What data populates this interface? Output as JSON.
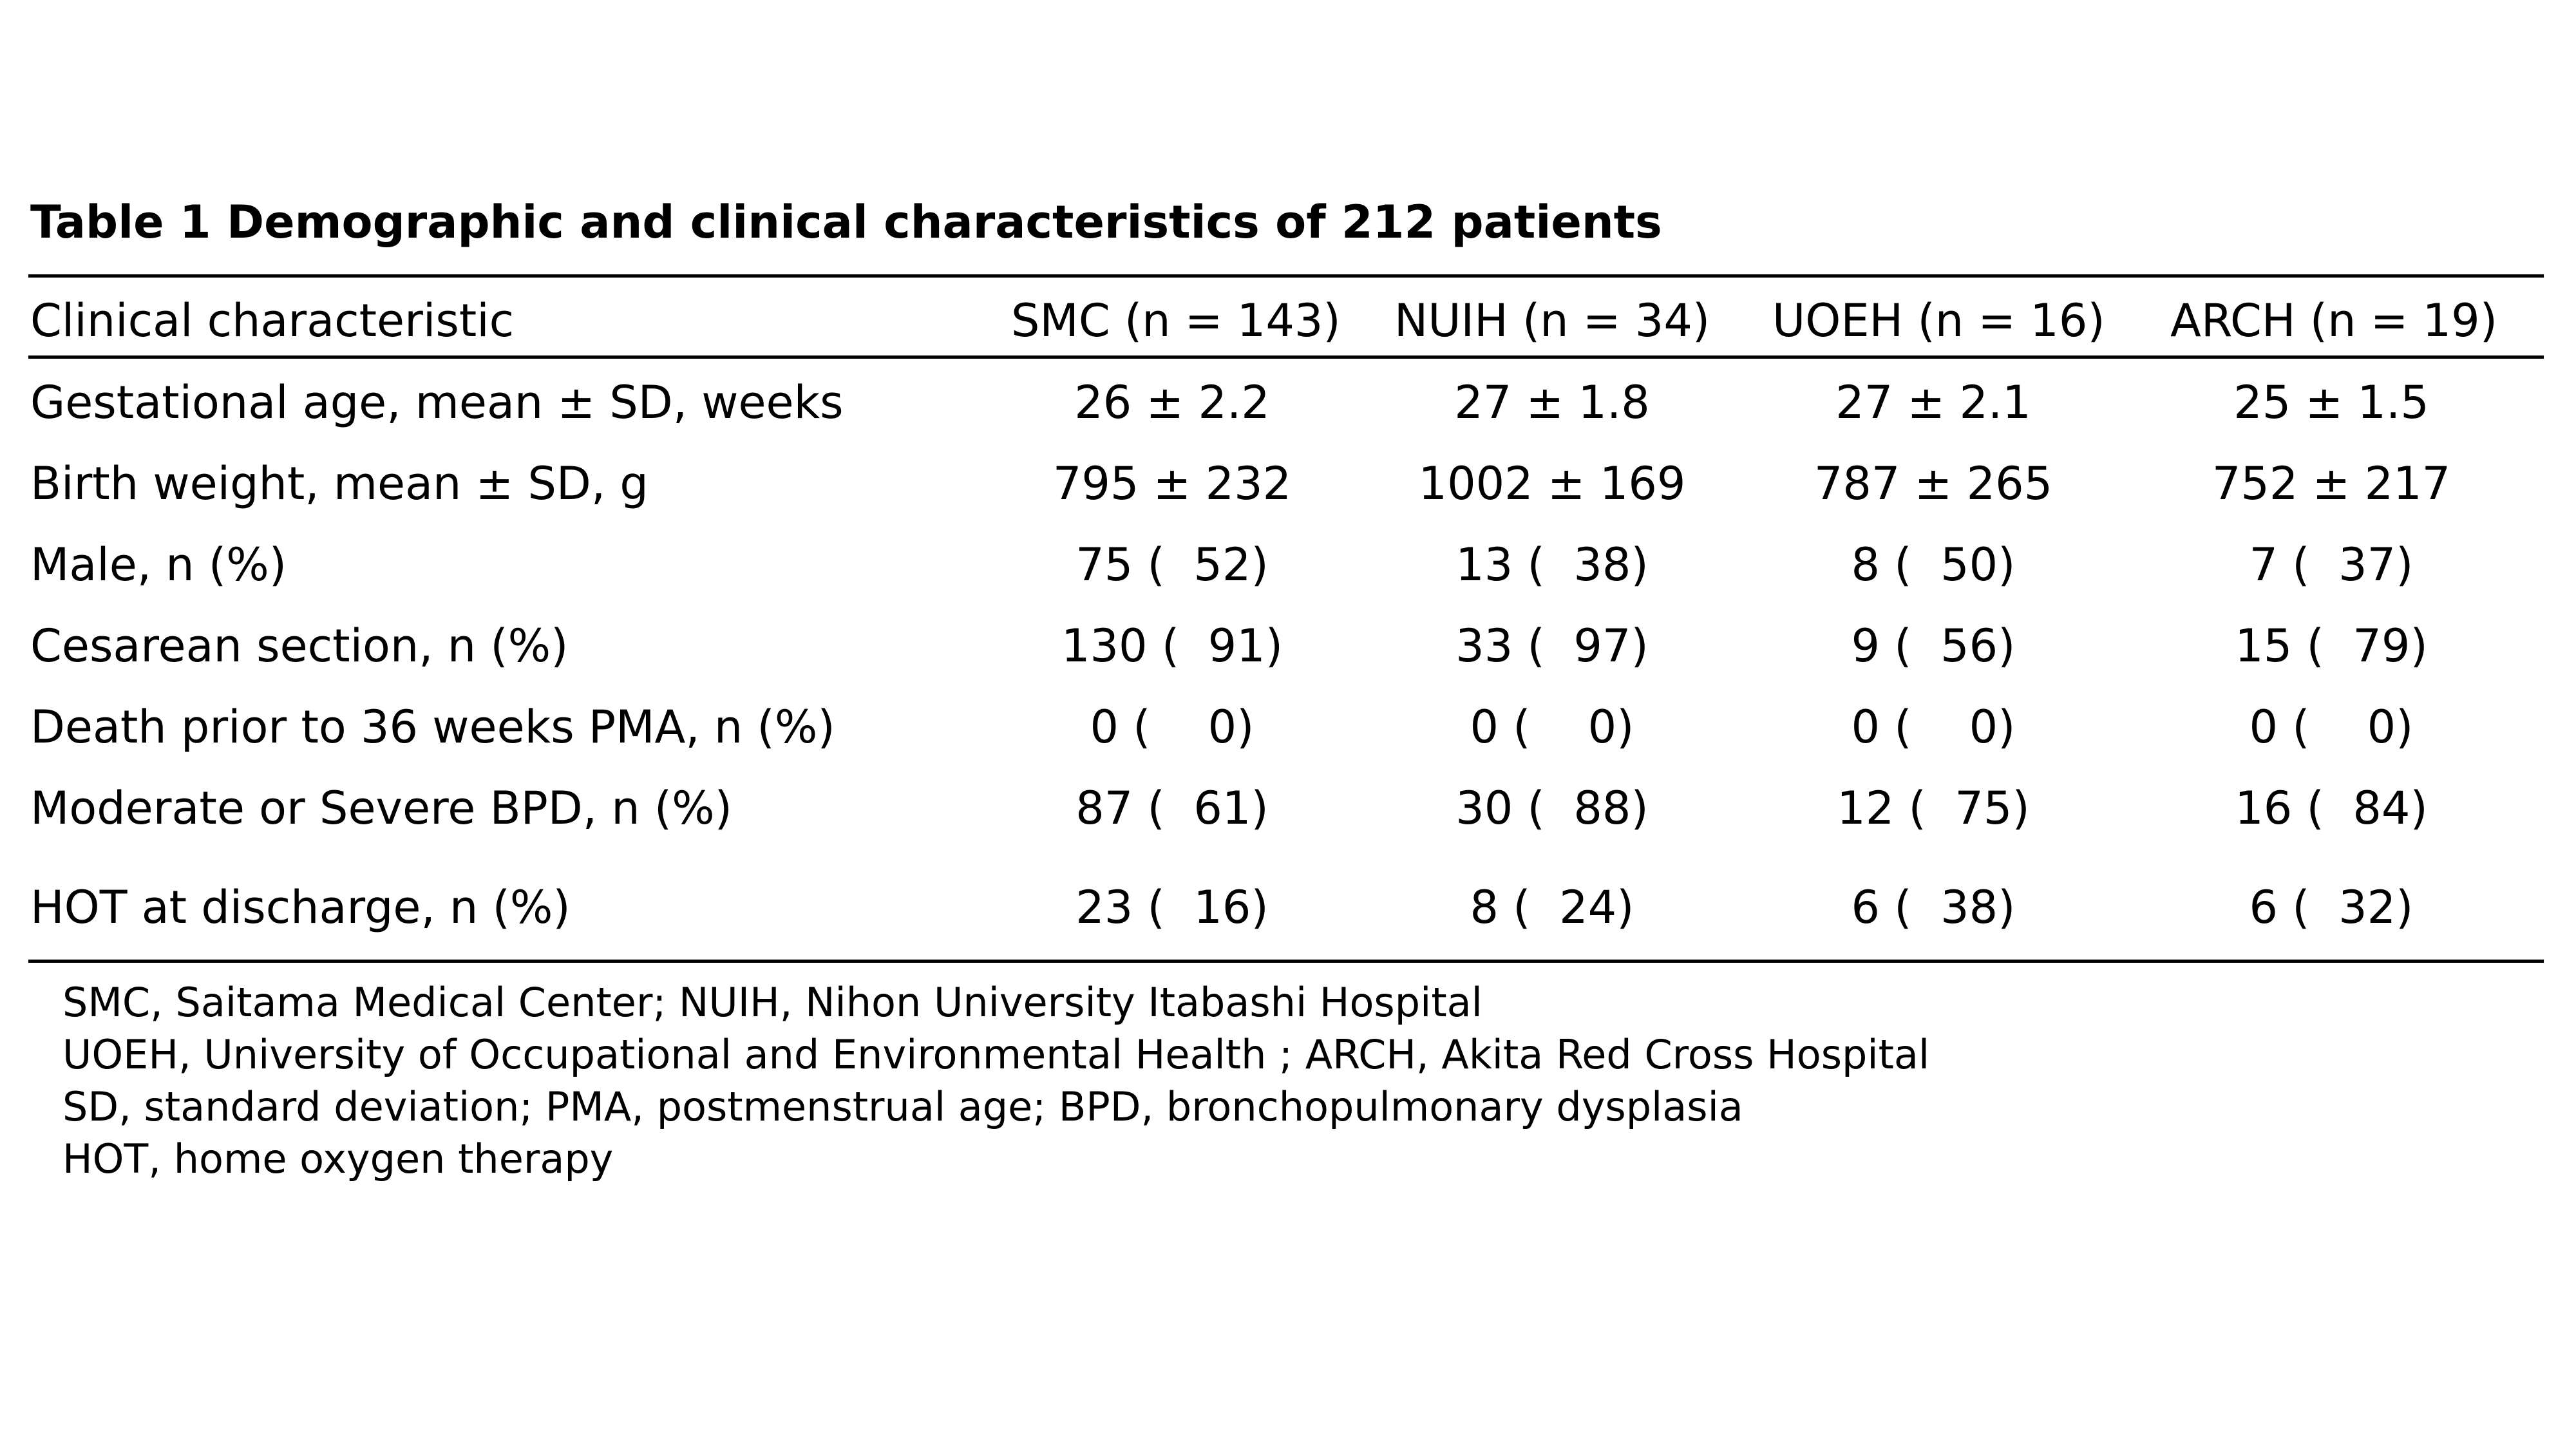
{
  "table": {
    "title": "Table 1  Demographic and clinical characteristics of 212 patients",
    "columns": [
      "Clinical characteristic",
      "SMC (n = 143)",
      "NUIH (n = 34)",
      "UOEH (n = 16)",
      "ARCH (n = 19)"
    ],
    "rows": [
      {
        "label": "Gestational age, mean ± SD, weeks",
        "values": [
          "26 ± 2.2",
          "27 ± 1.8",
          "27 ± 2.1",
          "25 ± 1.5"
        ]
      },
      {
        "label": "Birth weight, mean ± SD, g",
        "values": [
          "795 ± 232",
          "1002 ± 169",
          "787 ± 265",
          "752 ± 217"
        ]
      },
      {
        "label": "Male, n (%)",
        "values": [
          "75 (  52)",
          "13 (  38)",
          "8 (  50)",
          "7 (  37)"
        ]
      },
      {
        "label": "Cesarean section, n (%)",
        "values": [
          "130 (  91)",
          "33 (  97)",
          "9 (  56)",
          "15 (  79)"
        ]
      },
      {
        "label": "Death prior to 36 weeks PMA, n (%)",
        "values": [
          "0 (    0)",
          "0 (    0)",
          "0 (    0)",
          "0 (    0)"
        ]
      },
      {
        "label": "Moderate or Severe BPD, n (%)",
        "values": [
          "87 (  61)",
          "30 (  88)",
          "12 (  75)",
          "16 (  84)"
        ]
      },
      {
        "label": "HOT at discharge, n (%)",
        "values": [
          "23 (  16)",
          "8 (  24)",
          "6 (  38)",
          "6 (  32)"
        ]
      }
    ],
    "notes": [
      "SMC, Saitama Medical Center; NUIH, Nihon University Itabashi Hospital",
      "UOEH, University of Occupational and Environmental Health ; ARCH, Akita Red Cross Hospital",
      "SD, standard deviation; PMA, postmenstrual age; BPD, bronchopulmonary dysplasia",
      "HOT, home oxygen therapy"
    ]
  }
}
